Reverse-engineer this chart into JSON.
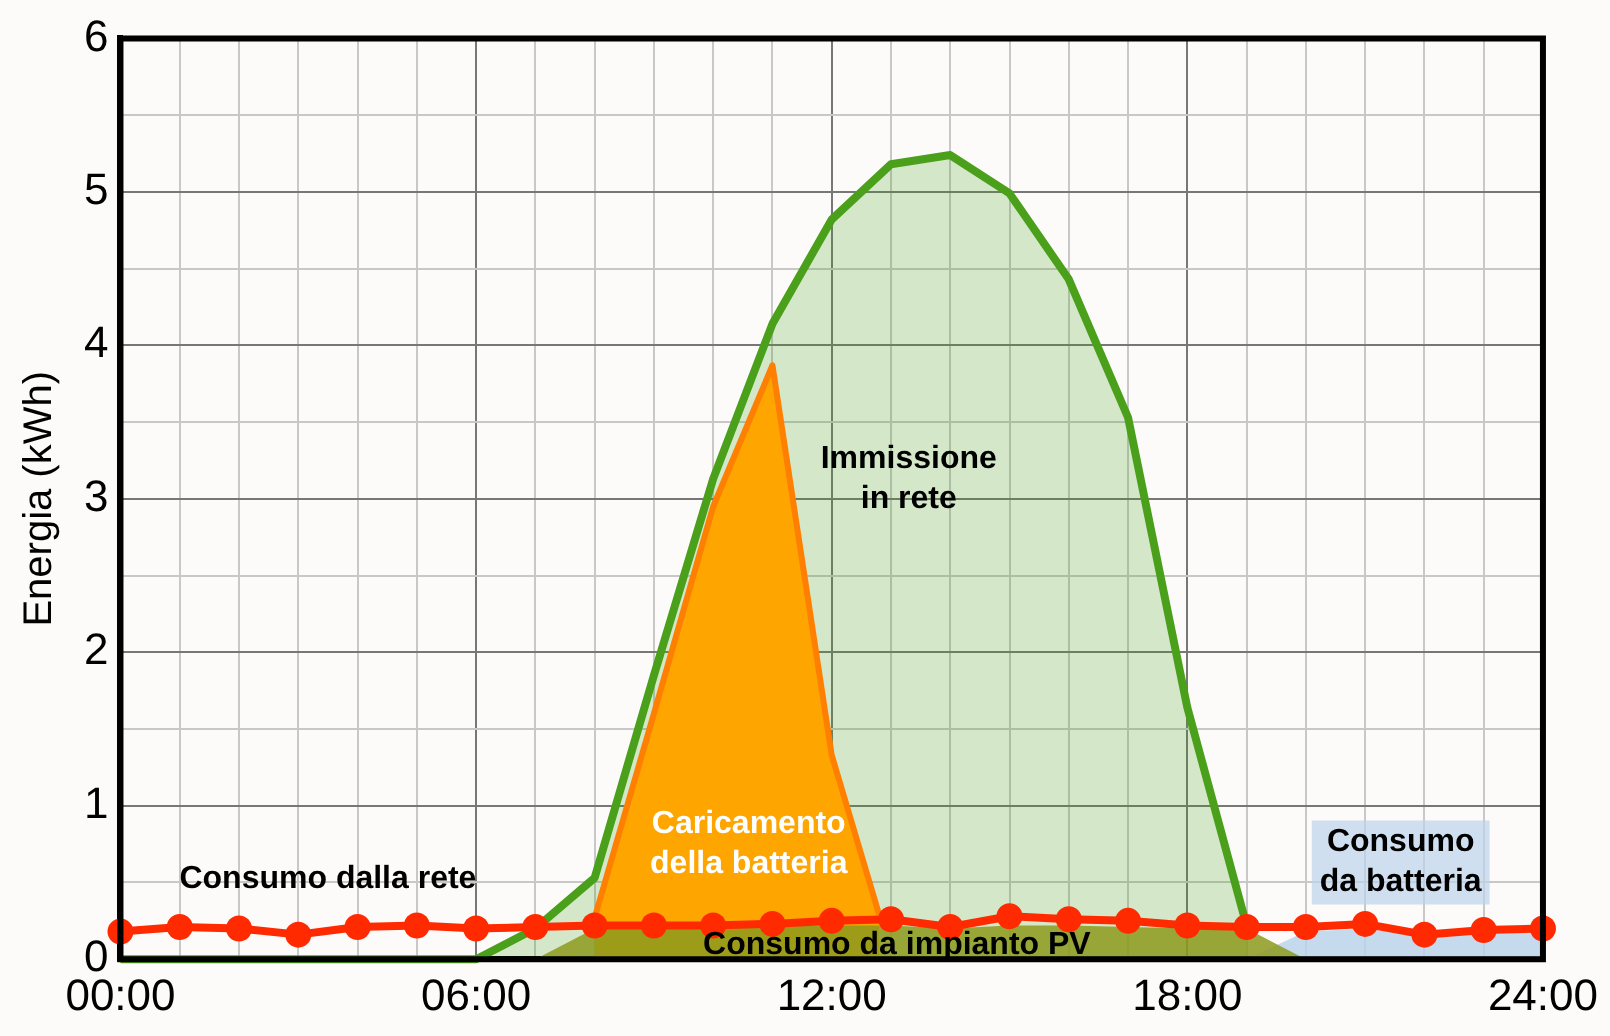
{
  "chart_data": {
    "type": "area",
    "ylabel": "Energia (kWh)",
    "xlim": [
      0,
      24
    ],
    "ylim": [
      0,
      6
    ],
    "xticks": [
      {
        "value": 0,
        "label": "00:00"
      },
      {
        "value": 1,
        "label": null
      },
      {
        "value": 2,
        "label": null
      },
      {
        "value": 3,
        "label": null
      },
      {
        "value": 4,
        "label": null
      },
      {
        "value": 5,
        "label": null
      },
      {
        "value": 6,
        "label": "06:00"
      },
      {
        "value": 7,
        "label": null
      },
      {
        "value": 8,
        "label": null
      },
      {
        "value": 9,
        "label": null
      },
      {
        "value": 10,
        "label": null
      },
      {
        "value": 11,
        "label": null
      },
      {
        "value": 12,
        "label": "12:00"
      },
      {
        "value": 13,
        "label": null
      },
      {
        "value": 14,
        "label": null
      },
      {
        "value": 15,
        "label": null
      },
      {
        "value": 16,
        "label": null
      },
      {
        "value": 17,
        "label": null
      },
      {
        "value": 18,
        "label": "18:00"
      },
      {
        "value": 19,
        "label": null
      },
      {
        "value": 20,
        "label": null
      },
      {
        "value": 21,
        "label": null
      },
      {
        "value": 22,
        "label": null
      },
      {
        "value": 23,
        "label": null
      },
      {
        "value": 24,
        "label": "24:00"
      }
    ],
    "yticks": [
      0,
      {
        "value": 0.5,
        "label": null
      },
      1,
      {
        "value": 1.5,
        "label": null
      },
      2,
      {
        "value": 2.5,
        "label": null
      },
      3,
      {
        "value": 3.5,
        "label": null
      },
      4,
      {
        "value": 4.5,
        "label": null
      },
      5,
      {
        "value": 5.5,
        "label": null
      },
      6
    ],
    "grid": true,
    "legend": false,
    "marker": "none",
    "line_style": "solid",
    "series": [
      {
        "name": "Immissione in rete",
        "color": "#4aa01a",
        "x": [
          0,
          1,
          2,
          3,
          4,
          5,
          6,
          7,
          8,
          9,
          10,
          11,
          12,
          13,
          14,
          15,
          16,
          17,
          18,
          19
        ],
        "values": [
          0,
          0,
          0,
          0,
          0,
          0,
          0,
          0.2,
          0.53,
          1.85,
          3.13,
          4.14,
          4.82,
          5.18,
          5.24,
          4.99,
          4.43,
          3.53,
          1.64,
          0.22
        ]
      },
      {
        "name": "Caricamento della batteria",
        "color": "#ffa500",
        "x": [
          8,
          9,
          10,
          11,
          12,
          12.8
        ],
        "values": [
          0.27,
          1.6,
          2.95,
          3.87,
          1.33,
          0.29
        ]
      },
      {
        "name": "Consumo da impianto PV",
        "color": "#8c9a1c",
        "x": [
          7,
          8,
          9,
          10,
          11,
          12,
          13,
          14,
          15,
          16,
          17,
          18,
          19,
          20
        ],
        "values": [
          0,
          0.2,
          0.2,
          0.2,
          0.22,
          0.22,
          0.22,
          0.2,
          0.22,
          0.22,
          0.21,
          0.2,
          0.2,
          0
        ]
      },
      {
        "name": "Consumo da batteria",
        "color": "#bcd3ea",
        "x": [
          19,
          20,
          21,
          22,
          23,
          24
        ],
        "values": [
          0,
          0.18,
          0.2,
          0.15,
          0.17,
          0.18
        ]
      },
      {
        "type": "line",
        "name": "Consumo dalla rete",
        "color": "#ff2a00",
        "marker": "circle",
        "x": [
          0,
          1,
          2,
          3,
          4,
          5,
          6,
          7,
          8,
          9,
          10,
          11,
          12,
          13,
          14,
          15,
          16,
          17,
          18,
          19,
          20,
          21,
          22,
          23,
          24
        ],
        "values": [
          0.18,
          0.21,
          0.2,
          0.16,
          0.21,
          0.22,
          0.2,
          0.21,
          0.22,
          0.22,
          0.22,
          0.23,
          0.25,
          0.26,
          0.21,
          0.28,
          0.26,
          0.25,
          0.22,
          0.21,
          0.21,
          0.23,
          0.16,
          0.19,
          0.2
        ]
      }
    ]
  }
}
